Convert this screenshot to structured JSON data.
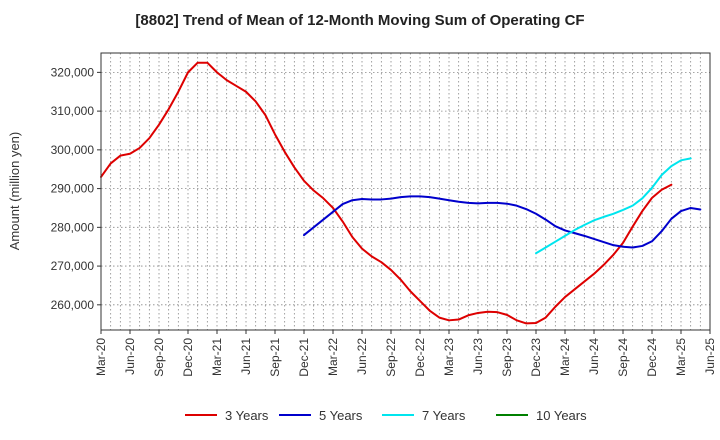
{
  "chart_data": {
    "type": "line",
    "title": "[8802]  Trend of Mean of 12-Month Moving Sum of Operating CF",
    "xlabel": "",
    "ylabel": "Amount (million yen)",
    "ylim": [
      253500,
      325000
    ],
    "y_ticks": [
      260000,
      270000,
      280000,
      290000,
      300000,
      310000,
      320000
    ],
    "y_tick_labels": [
      "260,000",
      "270,000",
      "280,000",
      "290,000",
      "300,000",
      "310,000",
      "320,000"
    ],
    "x_start": "Mar-20",
    "x_tick_labels": [
      "Mar-20",
      "Jun-20",
      "Sep-20",
      "Dec-20",
      "Mar-21",
      "Jun-21",
      "Sep-21",
      "Dec-21",
      "Mar-22",
      "Jun-22",
      "Sep-22",
      "Dec-22",
      "Mar-23",
      "Jun-23",
      "Sep-23",
      "Dec-23",
      "Mar-24",
      "Jun-24",
      "Sep-24",
      "Dec-24",
      "Mar-25",
      "Jun-25"
    ],
    "x_tick_months": [
      0,
      3,
      6,
      9,
      12,
      15,
      18,
      21,
      24,
      27,
      30,
      33,
      36,
      39,
      42,
      45,
      48,
      51,
      54,
      57,
      60,
      63
    ],
    "x_range_months": [
      0,
      63
    ],
    "grid": true,
    "legend_position": "bottom",
    "series": [
      {
        "name": "3 Years",
        "color": "#dd0000",
        "start_month": 0,
        "values": [
          293000,
          296500,
          298500,
          299000,
          300500,
          303000,
          306500,
          310500,
          315000,
          320000,
          322500,
          322500,
          320000,
          318000,
          316500,
          315000,
          312500,
          309000,
          304000,
          299500,
          295500,
          292000,
          289500,
          287500,
          285000,
          281500,
          277500,
          274500,
          272500,
          271000,
          269000,
          266500,
          263500,
          261000,
          258500,
          256700,
          256000,
          256200,
          257300,
          257900,
          258200,
          258100,
          257400,
          256000,
          255200,
          255300,
          256700,
          259500,
          262000,
          264000,
          266000,
          268000,
          270300,
          272900,
          276000,
          280200,
          284200,
          287600,
          289700,
          291000
        ]
      },
      {
        "name": "5 Years",
        "color": "#0000cc",
        "start_month": 21,
        "values": [
          278000,
          280000,
          282000,
          284000,
          286000,
          287000,
          287300,
          287200,
          287200,
          287400,
          287800,
          288000,
          288000,
          287800,
          287400,
          287000,
          286600,
          286300,
          286200,
          286300,
          286300,
          286100,
          285600,
          284700,
          283500,
          282000,
          280300,
          279200,
          278500,
          277800,
          277000,
          276200,
          275400,
          275000,
          274800,
          275200,
          276400,
          279000,
          282200,
          284200,
          285000,
          284600
        ]
      },
      {
        "name": "7 Years",
        "color": "#00e5ee",
        "start_month": 45,
        "values": [
          273300,
          274800,
          276300,
          277800,
          279300,
          280600,
          281800,
          282700,
          283500,
          284500,
          285600,
          287500,
          290200,
          293500,
          295800,
          297300,
          297800
        ]
      },
      {
        "name": "10 Years",
        "color": "#008000",
        "start_month": 0,
        "values": []
      }
    ]
  }
}
